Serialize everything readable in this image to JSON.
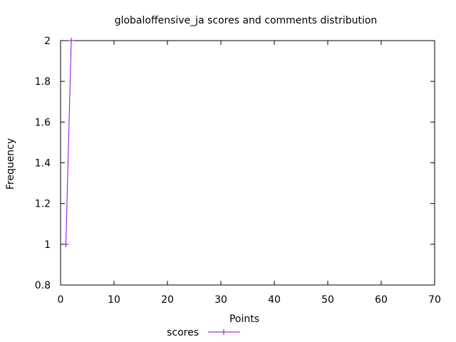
{
  "chart_data": {
    "type": "line",
    "title": "globaloffensive_ja scores and comments distribution",
    "xlabel": "Points",
    "ylabel": "Frequency",
    "xlim": [
      0,
      70
    ],
    "ylim": [
      0.8,
      2
    ],
    "xticks": [
      0,
      10,
      20,
      30,
      40,
      50,
      60,
      70
    ],
    "yticks": [
      0.8,
      1,
      1.2,
      1.4,
      1.6,
      1.8,
      2
    ],
    "grid": false,
    "legend_position": "bottom-center",
    "series": [
      {
        "name": "scores",
        "color": "#9400d3",
        "marker": "plus",
        "x": [
          1,
          2
        ],
        "y": [
          1,
          2
        ]
      }
    ]
  }
}
